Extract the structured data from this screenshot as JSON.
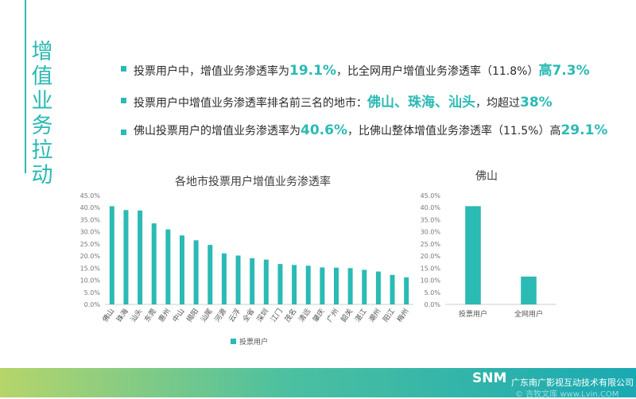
{
  "side_title": [
    "增",
    "值",
    "业",
    "务",
    "拉",
    "动"
  ],
  "bullets": [
    [
      {
        "t": "投票用户中，增值业务渗透率为",
        "h": false
      },
      {
        "t": "19.1%",
        "h": true
      },
      {
        "t": "，比全网用户增值业务渗透率（11.8%）",
        "h": false
      },
      {
        "t": "高7.3%",
        "h": true
      }
    ],
    [
      {
        "t": "投票用户中增值业务渗透率排名前三名的地市：",
        "h": false
      },
      {
        "t": "佛山、珠海、汕头",
        "h": true
      },
      {
        "t": "，均超过",
        "h": false
      },
      {
        "t": "38%",
        "h": true
      }
    ],
    [
      {
        "t": "佛山投票用户的增值业务渗透率为",
        "h": false
      },
      {
        "t": "40.6%",
        "h": true
      },
      {
        "t": "，比佛山整体增值业务渗透率（11.5%）高",
        "h": false
      },
      {
        "t": "29.1%",
        "h": true
      }
    ]
  ],
  "chart_data": [
    {
      "type": "bar",
      "title": "各地市投票用户增值业务渗透率",
      "categories": [
        "佛山",
        "珠海",
        "汕头",
        "东莞",
        "惠州",
        "中山",
        "揭阳",
        "汕尾",
        "河源",
        "云浮",
        "全省",
        "深圳",
        "江门",
        "茂名",
        "清远",
        "肇庆",
        "广州",
        "韶关",
        "湛江",
        "潮州",
        "阳江",
        "梅州"
      ],
      "series": [
        {
          "name": "投票用户",
          "values": [
            40.6,
            39.0,
            38.8,
            33.5,
            31.0,
            28.5,
            26.5,
            24.6,
            21.1,
            20.2,
            19.1,
            18.5,
            16.7,
            16.3,
            16.0,
            15.3,
            15.2,
            15.0,
            14.3,
            13.6,
            12.2,
            11.2
          ]
        }
      ],
      "y_ticks": [
        "0.0%",
        "5.0%",
        "10.0%",
        "15.0%",
        "20.0%",
        "25.0%",
        "30.0%",
        "35.0%",
        "40.0%",
        "45.0%"
      ],
      "ylim": [
        0,
        45
      ],
      "legend_position": "bottom",
      "color": "#2bbab4"
    },
    {
      "type": "bar",
      "title": "佛山",
      "categories": [
        "投票用户",
        "全网用户"
      ],
      "values": [
        40.6,
        11.5
      ],
      "y_ticks": [
        "0.0%",
        "5.0%",
        "10.0%",
        "15.0%",
        "20.0%",
        "25.0%",
        "30.0%",
        "35.0%",
        "40.0%",
        "45.0%"
      ],
      "ylim": [
        0,
        45
      ],
      "color": "#2bbab4"
    }
  ],
  "footer": {
    "logo": "SNM",
    "company": "广东南广影视互动技术有限公司",
    "watermark": "© 吉牧文库 www.Lvin.COM"
  }
}
